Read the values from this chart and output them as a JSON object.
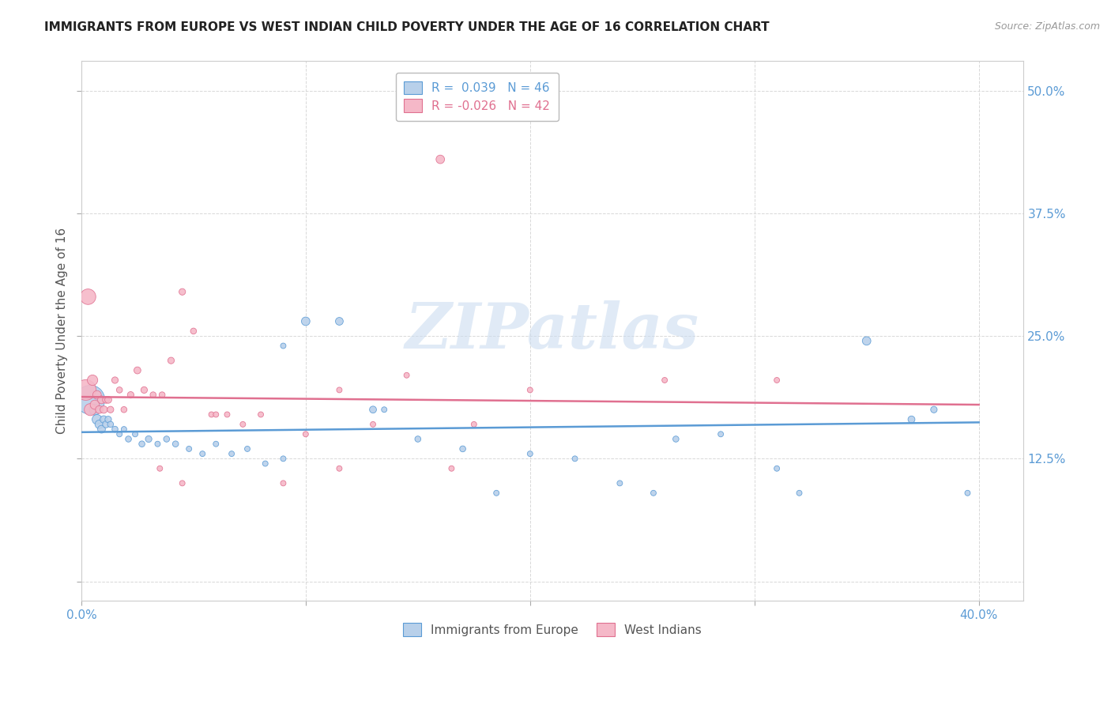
{
  "title": "IMMIGRANTS FROM EUROPE VS WEST INDIAN CHILD POVERTY UNDER THE AGE OF 16 CORRELATION CHART",
  "source": "Source: ZipAtlas.com",
  "ylabel": "Child Poverty Under the Age of 16",
  "ytick_values": [
    0.0,
    0.125,
    0.25,
    0.375,
    0.5
  ],
  "ytick_labels": [
    "",
    "12.5%",
    "25.0%",
    "37.5%",
    "50.0%"
  ],
  "xtick_values": [
    0.0,
    0.1,
    0.2,
    0.3,
    0.4
  ],
  "xlim": [
    0.0,
    0.42
  ],
  "ylim": [
    -0.02,
    0.53
  ],
  "legend1_label": "R =  0.039   N = 46",
  "legend2_label": "R = -0.026   N = 42",
  "series1_color": "#b8d0ea",
  "series2_color": "#f5b8c8",
  "line1_color": "#5b9bd5",
  "line2_color": "#e07090",
  "legend_label1": "Immigrants from Europe",
  "legend_label2": "West Indians",
  "blue_scatter_x": [
    0.004,
    0.006,
    0.007,
    0.008,
    0.009,
    0.01,
    0.011,
    0.012,
    0.013,
    0.015,
    0.017,
    0.019,
    0.021,
    0.024,
    0.027,
    0.03,
    0.034,
    0.038,
    0.042,
    0.048,
    0.054,
    0.06,
    0.067,
    0.074,
    0.082,
    0.09,
    0.1,
    0.115,
    0.13,
    0.15,
    0.17,
    0.2,
    0.22,
    0.24,
    0.265,
    0.285,
    0.31,
    0.35,
    0.37,
    0.38,
    0.395,
    0.32,
    0.255,
    0.185,
    0.135,
    0.09
  ],
  "blue_scatter_y": [
    0.185,
    0.175,
    0.165,
    0.16,
    0.155,
    0.165,
    0.16,
    0.165,
    0.16,
    0.155,
    0.15,
    0.155,
    0.145,
    0.15,
    0.14,
    0.145,
    0.14,
    0.145,
    0.14,
    0.135,
    0.13,
    0.14,
    0.13,
    0.135,
    0.12,
    0.125,
    0.265,
    0.265,
    0.175,
    0.145,
    0.135,
    0.13,
    0.125,
    0.1,
    0.145,
    0.15,
    0.115,
    0.245,
    0.165,
    0.175,
    0.09,
    0.09,
    0.09,
    0.09,
    0.175,
    0.24
  ],
  "blue_scatter_size": [
    700,
    100,
    80,
    60,
    50,
    45,
    40,
    35,
    30,
    30,
    25,
    25,
    30,
    25,
    30,
    35,
    25,
    30,
    30,
    25,
    25,
    25,
    25,
    25,
    25,
    25,
    60,
    50,
    40,
    30,
    30,
    25,
    25,
    25,
    30,
    25,
    25,
    60,
    40,
    35,
    25,
    25,
    25,
    25,
    25,
    25
  ],
  "pink_scatter_x": [
    0.002,
    0.003,
    0.004,
    0.005,
    0.006,
    0.007,
    0.008,
    0.009,
    0.01,
    0.011,
    0.012,
    0.013,
    0.015,
    0.017,
    0.019,
    0.022,
    0.025,
    0.028,
    0.032,
    0.036,
    0.04,
    0.045,
    0.05,
    0.058,
    0.065,
    0.072,
    0.08,
    0.09,
    0.1,
    0.115,
    0.13,
    0.145,
    0.16,
    0.175,
    0.2,
    0.26,
    0.31,
    0.115,
    0.035,
    0.045,
    0.06,
    0.165
  ],
  "pink_scatter_y": [
    0.195,
    0.29,
    0.175,
    0.205,
    0.18,
    0.19,
    0.175,
    0.185,
    0.175,
    0.185,
    0.185,
    0.175,
    0.205,
    0.195,
    0.175,
    0.19,
    0.215,
    0.195,
    0.19,
    0.19,
    0.225,
    0.295,
    0.255,
    0.17,
    0.17,
    0.16,
    0.17,
    0.1,
    0.15,
    0.115,
    0.16,
    0.21,
    0.43,
    0.16,
    0.195,
    0.205,
    0.205,
    0.195,
    0.115,
    0.1,
    0.17,
    0.115
  ],
  "pink_scatter_size": [
    350,
    200,
    120,
    90,
    70,
    60,
    50,
    50,
    45,
    40,
    40,
    35,
    35,
    30,
    30,
    35,
    40,
    35,
    30,
    30,
    35,
    35,
    30,
    25,
    25,
    25,
    25,
    25,
    25,
    25,
    25,
    25,
    60,
    25,
    25,
    25,
    25,
    25,
    25,
    25,
    25,
    25
  ],
  "blue_line_x": [
    0.0,
    0.4
  ],
  "blue_line_y": [
    0.152,
    0.162
  ],
  "pink_line_x": [
    0.0,
    0.4
  ],
  "pink_line_y": [
    0.188,
    0.18
  ],
  "watermark_text": "ZIPatlas",
  "watermark_color": "#ccddf0",
  "grid_color": "#d8d8d8",
  "title_color": "#222222",
  "tick_label_color": "#5b9bd5",
  "ylabel_color": "#555555"
}
